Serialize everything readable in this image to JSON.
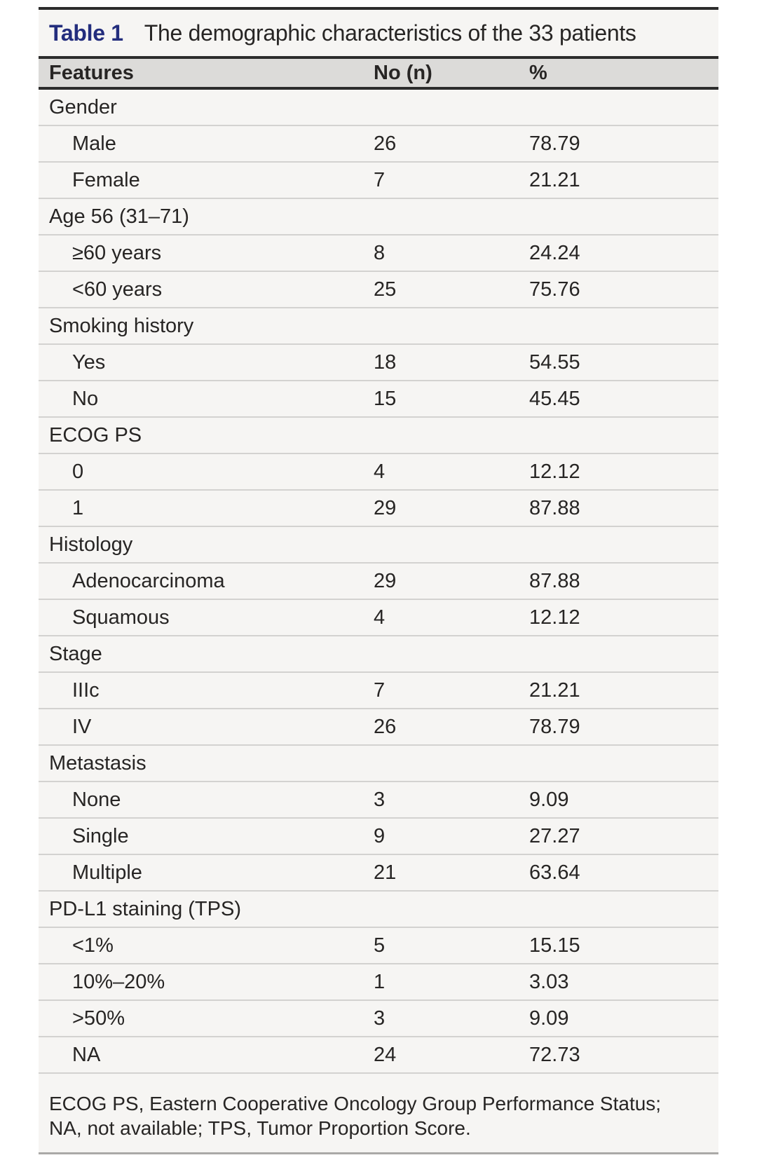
{
  "colors": {
    "page_bg": "#ffffff",
    "table_bg": "#f6f5f3",
    "header_bg": "#dcdbd9",
    "dark_rule": "#2c2c2c",
    "light_rule": "#d3d2d0",
    "bottom_rule": "#aaa9a7",
    "text": "#272524",
    "table_label_accent": "#232d7d"
  },
  "table": {
    "label": "Table 1",
    "title": "The demographic characteristics of the 33 patients",
    "columns": [
      "Features",
      "No (n)",
      "%"
    ],
    "rows": [
      {
        "type": "category",
        "feature": "Gender",
        "n": "",
        "pct": ""
      },
      {
        "type": "item",
        "feature": "Male",
        "n": "26",
        "pct": "78.79"
      },
      {
        "type": "item",
        "feature": "Female",
        "n": "7",
        "pct": "21.21"
      },
      {
        "type": "category",
        "feature": "Age 56 (31–71)",
        "n": "",
        "pct": ""
      },
      {
        "type": "item",
        "feature": "≥60 years",
        "n": "8",
        "pct": "24.24"
      },
      {
        "type": "item",
        "feature": "<60 years",
        "n": "25",
        "pct": "75.76"
      },
      {
        "type": "category",
        "feature": "Smoking history",
        "n": "",
        "pct": ""
      },
      {
        "type": "item",
        "feature": "Yes",
        "n": "18",
        "pct": "54.55"
      },
      {
        "type": "item",
        "feature": "No",
        "n": "15",
        "pct": "45.45"
      },
      {
        "type": "category",
        "feature": "ECOG PS",
        "n": "",
        "pct": ""
      },
      {
        "type": "item",
        "feature": "0",
        "n": "4",
        "pct": "12.12"
      },
      {
        "type": "item",
        "feature": "1",
        "n": "29",
        "pct": "87.88"
      },
      {
        "type": "category",
        "feature": "Histology",
        "n": "",
        "pct": ""
      },
      {
        "type": "item",
        "feature": "Adenocarcinoma",
        "n": "29",
        "pct": "87.88"
      },
      {
        "type": "item",
        "feature": "Squamous",
        "n": "4",
        "pct": "12.12"
      },
      {
        "type": "category",
        "feature": "Stage",
        "n": "",
        "pct": ""
      },
      {
        "type": "item",
        "feature": "IIIc",
        "n": "7",
        "pct": "21.21"
      },
      {
        "type": "item",
        "feature": "IV",
        "n": "26",
        "pct": "78.79"
      },
      {
        "type": "category",
        "feature": "Metastasis",
        "n": "",
        "pct": ""
      },
      {
        "type": "item",
        "feature": "None",
        "n": "3",
        "pct": "9.09"
      },
      {
        "type": "item",
        "feature": "Single",
        "n": "9",
        "pct": "27.27"
      },
      {
        "type": "item",
        "feature": "Multiple",
        "n": "21",
        "pct": "63.64"
      },
      {
        "type": "category",
        "feature": "PD-L1 staining (TPS)",
        "n": "",
        "pct": ""
      },
      {
        "type": "item",
        "feature": "<1%",
        "n": "5",
        "pct": "15.15"
      },
      {
        "type": "item",
        "feature": "10%–20%",
        "n": "1",
        "pct": "3.03"
      },
      {
        "type": "item",
        "feature": ">50%",
        "n": "3",
        "pct": "9.09"
      },
      {
        "type": "item",
        "feature": "NA",
        "n": "24",
        "pct": "72.73"
      }
    ],
    "footnote": "ECOG PS, Eastern Cooperative Oncology Group Performance Status; NA, not available; TPS, Tumor Proportion Score."
  }
}
